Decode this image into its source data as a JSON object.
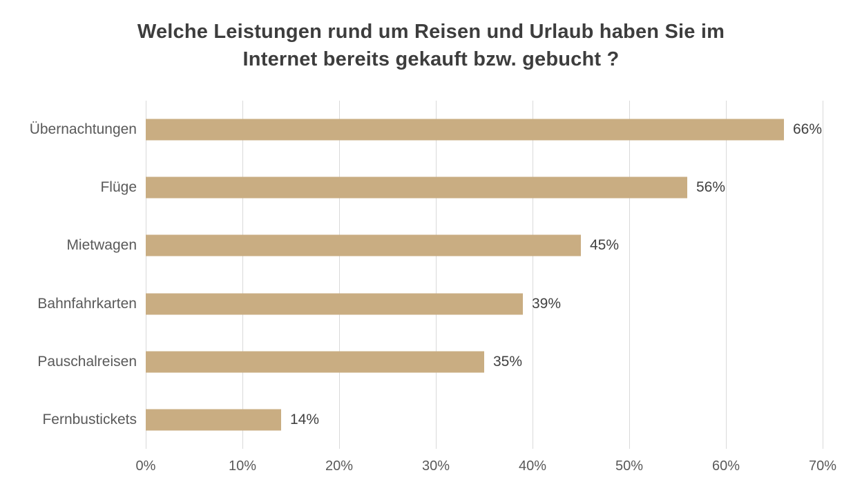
{
  "chart_data": {
    "type": "bar",
    "orientation": "horizontal",
    "title": "Welche Leistungen rund um Reisen und Urlaub haben Sie im Internet bereits gekauft bzw. gebucht ?",
    "title_lines": [
      "Welche Leistungen rund um Reisen und Urlaub haben Sie im",
      "Internet bereits gekauft bzw. gebucht ?"
    ],
    "categories": [
      "Übernachtungen",
      "Flüge",
      "Mietwagen",
      "Bahnfahrkarten",
      "Pauschalreisen",
      "Fernbustickets"
    ],
    "values": [
      66,
      56,
      45,
      39,
      35,
      14
    ],
    "value_labels": [
      "66%",
      "56%",
      "45%",
      "39%",
      "35%",
      "14%"
    ],
    "x_ticks": [
      "0%",
      "10%",
      "20%",
      "30%",
      "40%",
      "50%",
      "60%",
      "70%"
    ],
    "xlim": [
      0,
      70
    ],
    "xlabel": "",
    "ylabel": "",
    "grid": "vertical",
    "legend": "none",
    "bar_color": "#c9ad82",
    "gridline_color": "#d9d9d9",
    "title_color": "#3d3d3d",
    "axis_label_color": "#595959",
    "value_label_color": "#404040",
    "background_color": "#ffffff"
  }
}
